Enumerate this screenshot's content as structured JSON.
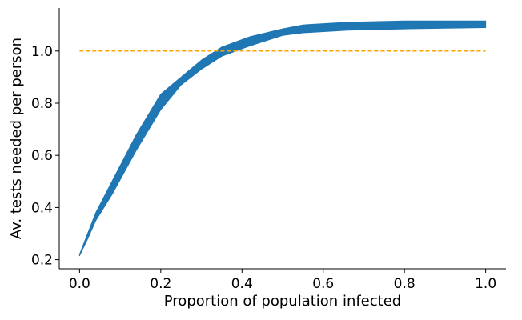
{
  "chart_data": {
    "type": "area",
    "xlabel": "Proportion of population infected",
    "ylabel": "Av. tests needed per person",
    "xlim": [
      -0.05,
      1.05
    ],
    "ylim": [
      0.165,
      1.165
    ],
    "x_ticks": [
      0.0,
      0.2,
      0.4,
      0.6,
      0.8,
      1.0
    ],
    "x_tick_labels": [
      "0.0",
      "0.2",
      "0.4",
      "0.6",
      "0.8",
      "1.0"
    ],
    "y_ticks": [
      0.2,
      0.4,
      0.6,
      0.8,
      1.0
    ],
    "y_tick_labels": [
      "0.2",
      "0.4",
      "0.6",
      "0.8",
      "1.0"
    ],
    "grid": false,
    "colors": {
      "band": "#1f77b4",
      "reference": "#ffa500"
    },
    "band": {
      "x": [
        0.0,
        0.02,
        0.04,
        0.08,
        0.14,
        0.2,
        0.25,
        0.3,
        0.35,
        0.42,
        0.5,
        0.55,
        0.66,
        0.8,
        1.0
      ],
      "lower": [
        0.215,
        0.28,
        0.35,
        0.45,
        0.62,
        0.775,
        0.87,
        0.93,
        0.98,
        1.02,
        1.06,
        1.07,
        1.08,
        1.085,
        1.09
      ],
      "upper": [
        0.22,
        0.3,
        0.38,
        0.5,
        0.68,
        0.835,
        0.9,
        0.965,
        1.015,
        1.055,
        1.085,
        1.1,
        1.11,
        1.115,
        1.115
      ]
    },
    "reference_line": {
      "y": 1.0,
      "x_range": [
        0.0,
        1.0
      ],
      "style": "dashed"
    }
  }
}
